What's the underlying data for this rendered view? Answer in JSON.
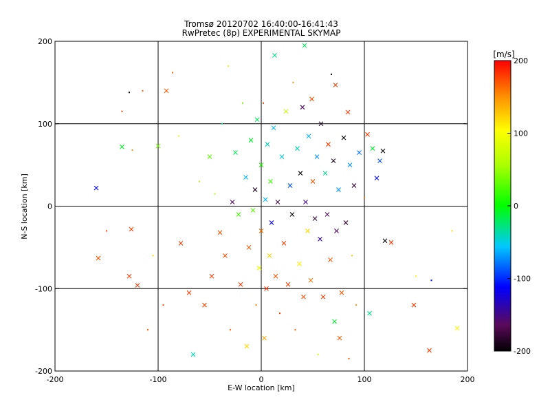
{
  "chart_data": {
    "type": "scatter",
    "title": "Tromsø 20120702 16:40:00-16:41:43",
    "subtitle": "RwPretec (8p) EXPERIMENTAL SKYMAP",
    "xlabel": "E-W location [km]",
    "ylabel": "N-S location [km]",
    "xlim": [
      -200,
      200
    ],
    "ylim": [
      -200,
      200
    ],
    "xticks": [
      "-200",
      "-100",
      "0",
      "100",
      "200"
    ],
    "yticks": [
      "-200",
      "-100",
      "0",
      "100",
      "200"
    ],
    "grid": true,
    "colorbar": {
      "unit_label": "[m/s]",
      "range": [
        -200,
        200
      ],
      "ticks": [
        "200",
        "100",
        "0",
        "-100",
        "-200"
      ]
    },
    "marker_legend": {
      "dot": "small point",
      "cross": "x"
    },
    "points": [
      {
        "x": -160,
        "y": 22,
        "v": -110,
        "m": "x"
      },
      {
        "x": -158,
        "y": -63,
        "v": 170,
        "m": "x"
      },
      {
        "x": -150,
        "y": -30,
        "v": 180,
        "m": "."
      },
      {
        "x": -135,
        "y": 72,
        "v": -10,
        "m": "x"
      },
      {
        "x": -128,
        "y": -85,
        "v": 180,
        "m": "x"
      },
      {
        "x": -120,
        "y": -96,
        "v": 180,
        "m": "x"
      },
      {
        "x": -110,
        "y": -150,
        "v": 170,
        "m": "."
      },
      {
        "x": -126,
        "y": -28,
        "v": 180,
        "m": "x"
      },
      {
        "x": -115,
        "y": 140,
        "v": 170,
        "m": "."
      },
      {
        "x": -125,
        "y": 68,
        "v": 150,
        "m": "."
      },
      {
        "x": -100,
        "y": 73,
        "v": 40,
        "m": "x"
      },
      {
        "x": -105,
        "y": -60,
        "v": 120,
        "m": "."
      },
      {
        "x": -95,
        "y": -120,
        "v": 180,
        "m": "."
      },
      {
        "x": -92,
        "y": 140,
        "v": 170,
        "m": "x"
      },
      {
        "x": -80,
        "y": 85,
        "v": 90,
        "m": "."
      },
      {
        "x": -78,
        "y": -45,
        "v": 180,
        "m": "x"
      },
      {
        "x": -70,
        "y": -105,
        "v": 180,
        "m": "x"
      },
      {
        "x": -66,
        "y": -180,
        "v": -40,
        "m": "x"
      },
      {
        "x": -60,
        "y": 30,
        "v": 60,
        "m": "."
      },
      {
        "x": -55,
        "y": -120,
        "v": 175,
        "m": "x"
      },
      {
        "x": -50,
        "y": 60,
        "v": 30,
        "m": "x"
      },
      {
        "x": -48,
        "y": -85,
        "v": 180,
        "m": "x"
      },
      {
        "x": -45,
        "y": 15,
        "v": 60,
        "m": "."
      },
      {
        "x": -40,
        "y": -32,
        "v": 170,
        "m": "x"
      },
      {
        "x": -38,
        "y": 100,
        "v": -30,
        "m": "."
      },
      {
        "x": -35,
        "y": -60,
        "v": 175,
        "m": "x"
      },
      {
        "x": -32,
        "y": 170,
        "v": 110,
        "m": "."
      },
      {
        "x": -30,
        "y": -150,
        "v": 170,
        "m": "."
      },
      {
        "x": -28,
        "y": 5,
        "v": -160,
        "m": "x"
      },
      {
        "x": -25,
        "y": 65,
        "v": -20,
        "m": "x"
      },
      {
        "x": -22,
        "y": -10,
        "v": 20,
        "m": "x"
      },
      {
        "x": -20,
        "y": -95,
        "v": 180,
        "m": "x"
      },
      {
        "x": -18,
        "y": 125,
        "v": 40,
        "m": "."
      },
      {
        "x": -15,
        "y": 35,
        "v": -60,
        "m": "x"
      },
      {
        "x": -14,
        "y": -170,
        "v": 120,
        "m": "x"
      },
      {
        "x": -12,
        "y": -50,
        "v": 170,
        "m": "x"
      },
      {
        "x": -10,
        "y": 80,
        "v": -10,
        "m": "x"
      },
      {
        "x": -8,
        "y": -5,
        "v": 30,
        "m": "x"
      },
      {
        "x": -6,
        "y": 20,
        "v": -190,
        "m": "x"
      },
      {
        "x": -5,
        "y": -120,
        "v": 160,
        "m": "."
      },
      {
        "x": -4,
        "y": 105,
        "v": -20,
        "m": "x"
      },
      {
        "x": -2,
        "y": -75,
        "v": 90,
        "m": "x"
      },
      {
        "x": 0,
        "y": 50,
        "v": 10,
        "m": "x"
      },
      {
        "x": 0,
        "y": -30,
        "v": 160,
        "m": "x"
      },
      {
        "x": 2,
        "y": 125,
        "v": 180,
        "m": "."
      },
      {
        "x": 3,
        "y": -160,
        "v": 140,
        "m": "x"
      },
      {
        "x": 4,
        "y": 8,
        "v": -60,
        "m": "x"
      },
      {
        "x": 5,
        "y": -100,
        "v": 185,
        "m": "x"
      },
      {
        "x": 6,
        "y": 75,
        "v": -40,
        "m": "x"
      },
      {
        "x": 8,
        "y": -60,
        "v": 120,
        "m": "x"
      },
      {
        "x": 9,
        "y": 30,
        "v": 20,
        "m": "x"
      },
      {
        "x": 10,
        "y": -20,
        "v": -120,
        "m": "x"
      },
      {
        "x": 12,
        "y": 95,
        "v": -60,
        "m": "x"
      },
      {
        "x": 13,
        "y": 183,
        "v": -30,
        "m": "x"
      },
      {
        "x": 14,
        "y": -85,
        "v": 170,
        "m": "x"
      },
      {
        "x": 16,
        "y": 5,
        "v": -170,
        "m": "x"
      },
      {
        "x": 18,
        "y": -130,
        "v": 180,
        "m": "."
      },
      {
        "x": 20,
        "y": 60,
        "v": -50,
        "m": "x"
      },
      {
        "x": 22,
        "y": -45,
        "v": 180,
        "m": "x"
      },
      {
        "x": 24,
        "y": 115,
        "v": 70,
        "m": "x"
      },
      {
        "x": 26,
        "y": -95,
        "v": 180,
        "m": "x"
      },
      {
        "x": 28,
        "y": 25,
        "v": -90,
        "m": "x"
      },
      {
        "x": 30,
        "y": -10,
        "v": -200,
        "m": "x"
      },
      {
        "x": 31,
        "y": 150,
        "v": 150,
        "m": "."
      },
      {
        "x": 33,
        "y": -150,
        "v": 170,
        "m": "."
      },
      {
        "x": 35,
        "y": 70,
        "v": -40,
        "m": "x"
      },
      {
        "x": 37,
        "y": -70,
        "v": 110,
        "m": "x"
      },
      {
        "x": 38,
        "y": 40,
        "v": -200,
        "m": "x"
      },
      {
        "x": 40,
        "y": 120,
        "v": -160,
        "m": "x"
      },
      {
        "x": 41,
        "y": -110,
        "v": 175,
        "m": "x"
      },
      {
        "x": 42,
        "y": 195,
        "v": -20,
        "m": "x"
      },
      {
        "x": 43,
        "y": 5,
        "v": -150,
        "m": "x"
      },
      {
        "x": 45,
        "y": -30,
        "v": 120,
        "m": "x"
      },
      {
        "x": 46,
        "y": 85,
        "v": -60,
        "m": "x"
      },
      {
        "x": 48,
        "y": -90,
        "v": 160,
        "m": "x"
      },
      {
        "x": 49,
        "y": 130,
        "v": 170,
        "m": "x"
      },
      {
        "x": 50,
        "y": 30,
        "v": 170,
        "m": "x"
      },
      {
        "x": 52,
        "y": -15,
        "v": -180,
        "m": "x"
      },
      {
        "x": 54,
        "y": 60,
        "v": -70,
        "m": "x"
      },
      {
        "x": 55,
        "y": -180,
        "v": 80,
        "m": "."
      },
      {
        "x": 57,
        "y": -40,
        "v": -140,
        "m": "x"
      },
      {
        "x": 58,
        "y": 100,
        "v": -190,
        "m": "x"
      },
      {
        "x": 60,
        "y": -110,
        "v": 180,
        "m": "x"
      },
      {
        "x": 62,
        "y": 40,
        "v": -30,
        "m": "x"
      },
      {
        "x": 64,
        "y": -10,
        "v": -160,
        "m": "x"
      },
      {
        "x": 65,
        "y": 75,
        "v": 180,
        "m": "x"
      },
      {
        "x": 67,
        "y": -65,
        "v": 170,
        "m": "x"
      },
      {
        "x": 68,
        "y": 160,
        "v": -200,
        "m": "."
      },
      {
        "x": 70,
        "y": 55,
        "v": -190,
        "m": "x"
      },
      {
        "x": 71,
        "y": -140,
        "v": -10,
        "m": "x"
      },
      {
        "x": 72,
        "y": 147,
        "v": 180,
        "m": "x"
      },
      {
        "x": 73,
        "y": -30,
        "v": -160,
        "m": "x"
      },
      {
        "x": 75,
        "y": 20,
        "v": -70,
        "m": "x"
      },
      {
        "x": 76,
        "y": -160,
        "v": 170,
        "m": "x"
      },
      {
        "x": 78,
        "y": -105,
        "v": 170,
        "m": "x"
      },
      {
        "x": 80,
        "y": 83,
        "v": -200,
        "m": "x"
      },
      {
        "x": 82,
        "y": -20,
        "v": -180,
        "m": "x"
      },
      {
        "x": 84,
        "y": 114,
        "v": 180,
        "m": "x"
      },
      {
        "x": 85,
        "y": -185,
        "v": 170,
        "m": "."
      },
      {
        "x": 86,
        "y": 50,
        "v": -70,
        "m": "x"
      },
      {
        "x": 88,
        "y": -60,
        "v": 130,
        "m": "."
      },
      {
        "x": 90,
        "y": 25,
        "v": -180,
        "m": "x"
      },
      {
        "x": 92,
        "y": -120,
        "v": 150,
        "m": "."
      },
      {
        "x": 95,
        "y": 65,
        "v": -80,
        "m": "x"
      },
      {
        "x": 100,
        "y": 10,
        "v": 160,
        "m": "."
      },
      {
        "x": 103,
        "y": 87,
        "v": 180,
        "m": "x"
      },
      {
        "x": 105,
        "y": -130,
        "v": -30,
        "m": "x"
      },
      {
        "x": 108,
        "y": 70,
        "v": -10,
        "m": "x"
      },
      {
        "x": 112,
        "y": 34,
        "v": -110,
        "m": "x"
      },
      {
        "x": 115,
        "y": 55,
        "v": -90,
        "m": "x"
      },
      {
        "x": 118,
        "y": 67,
        "v": -200,
        "m": "x"
      },
      {
        "x": 120,
        "y": -42,
        "v": -200,
        "m": "x"
      },
      {
        "x": 126,
        "y": -44,
        "v": 180,
        "m": "x"
      },
      {
        "x": 148,
        "y": -120,
        "v": 180,
        "m": "x"
      },
      {
        "x": 150,
        "y": -85,
        "v": 110,
        "m": "."
      },
      {
        "x": 163,
        "y": -175,
        "v": 180,
        "m": "x"
      },
      {
        "x": 165,
        "y": -90,
        "v": -110,
        "m": "."
      },
      {
        "x": 185,
        "y": -30,
        "v": 120,
        "m": "."
      },
      {
        "x": 190,
        "y": -148,
        "v": 110,
        "m": "x"
      },
      {
        "x": -135,
        "y": 115,
        "v": 180,
        "m": "."
      },
      {
        "x": -128,
        "y": 138,
        "v": -200,
        "m": "."
      },
      {
        "x": -86,
        "y": 162,
        "v": 170,
        "m": "."
      }
    ]
  }
}
